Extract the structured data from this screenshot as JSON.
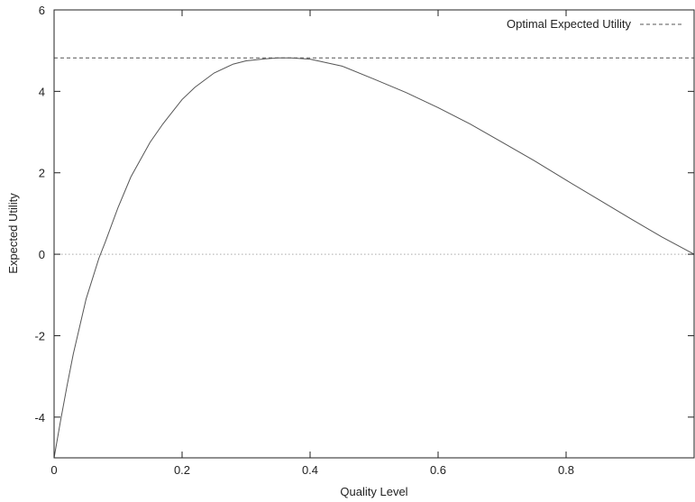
{
  "chart_data": {
    "type": "line",
    "title": "",
    "xlabel": "Quality Level",
    "ylabel": "Expected Utility",
    "xlim": [
      0,
      1
    ],
    "ylim": [
      -5,
      6
    ],
    "x_ticks": [
      0,
      0.2,
      0.4,
      0.6,
      0.8
    ],
    "x_tick_labels": [
      "0",
      "0.2",
      "0.4",
      "0.6",
      "0.8"
    ],
    "y_ticks": [
      -4,
      -2,
      0,
      2,
      4,
      6
    ],
    "y_tick_labels": [
      "-4",
      "-2",
      "0",
      "2",
      "4",
      "6"
    ],
    "grid": false,
    "legend_position": "top-right",
    "series": [
      {
        "role": "curve",
        "style": "solid",
        "color": "#555555",
        "x": [
          0,
          0.01,
          0.02,
          0.03,
          0.05,
          0.07,
          0.08,
          0.1,
          0.12,
          0.15,
          0.17,
          0.2,
          0.22,
          0.25,
          0.28,
          0.3,
          0.33,
          0.35,
          0.37,
          0.4,
          0.45,
          0.5,
          0.55,
          0.6,
          0.65,
          0.7,
          0.75,
          0.8,
          0.85,
          0.9,
          0.95,
          1.0
        ],
        "y": [
          -5.0,
          -4.1,
          -3.25,
          -2.45,
          -1.1,
          -0.1,
          0.3,
          1.15,
          1.9,
          2.75,
          3.2,
          3.8,
          4.1,
          4.45,
          4.67,
          4.75,
          4.8,
          4.82,
          4.82,
          4.79,
          4.62,
          4.3,
          3.97,
          3.6,
          3.2,
          2.75,
          2.3,
          1.82,
          1.35,
          0.88,
          0.42,
          0.0
        ]
      },
      {
        "name": "Optimal Expected Utility",
        "style": "dashed",
        "color": "#555555",
        "x": [
          0,
          1
        ],
        "y": [
          4.82,
          4.82
        ]
      },
      {
        "role": "zero-line",
        "style": "dotted",
        "color": "#aaaaaa",
        "x": [
          0,
          1
        ],
        "y": [
          0,
          0
        ]
      }
    ]
  }
}
